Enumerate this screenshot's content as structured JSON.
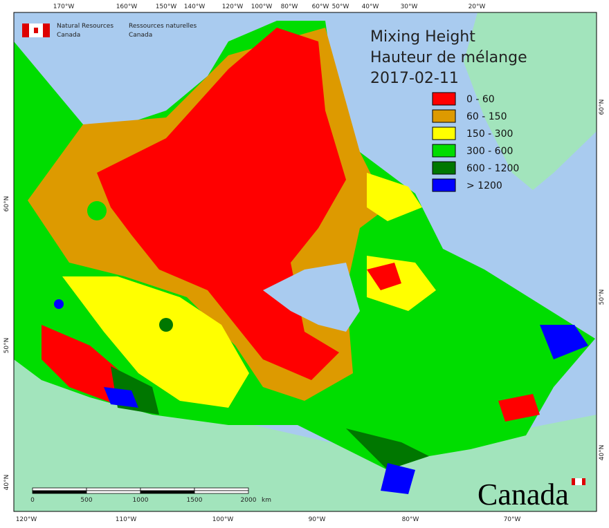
{
  "header": {
    "org_en": [
      "Natural Resources",
      "Canada"
    ],
    "org_fr": [
      "Ressources naturelles",
      "Canada"
    ]
  },
  "title": [
    "Mixing Height",
    "Hauteur de mélange",
    "2017-02-11"
  ],
  "legend": [
    {
      "label": "0 - 60",
      "color": "#ff0000"
    },
    {
      "label": "60 - 150",
      "color": "#dd9a00"
    },
    {
      "label": "150 - 300",
      "color": "#ffff00"
    },
    {
      "label": "300 - 600",
      "color": "#00dd00"
    },
    {
      "label": "600 - 1200",
      "color": "#007700"
    },
    {
      "label": "> 1200",
      "color": "#0000ff"
    }
  ],
  "top_labels": [
    "170°W",
    "160°W",
    "150°W",
    "140°W",
    "120°W",
    "100°W",
    "80°W",
    "60°W",
    "50°W",
    "40°W",
    "30°W",
    "20°W"
  ],
  "bottom_labels": [
    "120°W",
    "110°W",
    "100°W",
    "90°W",
    "80°W",
    "70°W"
  ],
  "left_labels": [
    "60°N",
    "50°N",
    "40°N"
  ],
  "right_labels": [
    "60°N",
    "50°N",
    "40°N"
  ],
  "scale_bar": {
    "labels": [
      "0",
      "500",
      "1000",
      "1500",
      "2000"
    ],
    "unit": "km"
  },
  "wordmark": "Canada"
}
